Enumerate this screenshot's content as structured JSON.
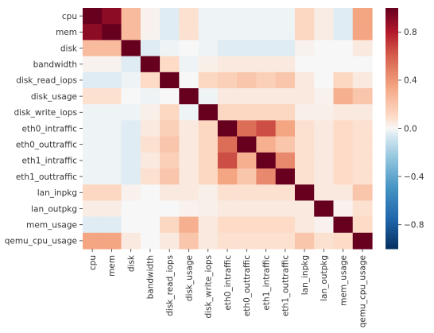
{
  "chart_data": {
    "type": "heatmap",
    "title": "",
    "xlabel": "",
    "ylabel": "",
    "labels": [
      "cpu",
      "mem",
      "disk",
      "bandwidth",
      "disk_read_iops",
      "disk_usage",
      "disk_write_iops",
      "eth0_intraffic",
      "eth0_outtraffic",
      "eth1_intraffic",
      "eth1_outtraffic",
      "lan_inpkg",
      "lan_outpkg",
      "mem_usage",
      "qemu_cpu_usage"
    ],
    "matrix": [
      [
        1.0,
        0.9,
        0.25,
        0.02,
        -0.05,
        0.08,
        -0.02,
        -0.02,
        -0.02,
        -0.02,
        -0.02,
        0.12,
        0.04,
        -0.05,
        0.35
      ],
      [
        0.9,
        1.0,
        0.25,
        0.02,
        -0.05,
        0.08,
        -0.02,
        -0.02,
        -0.02,
        -0.02,
        -0.02,
        0.12,
        0.04,
        -0.05,
        0.35
      ],
      [
        0.25,
        0.25,
        1.0,
        -0.05,
        -0.02,
        0.0,
        -0.02,
        -0.05,
        -0.05,
        -0.05,
        -0.05,
        0.02,
        0.0,
        0.0,
        0.05
      ],
      [
        0.02,
        0.02,
        -0.05,
        1.0,
        0.1,
        -0.02,
        0.03,
        0.05,
        0.05,
        0.05,
        0.05,
        0.0,
        0.0,
        0.0,
        0.0
      ],
      [
        -0.05,
        -0.05,
        -0.02,
        0.1,
        1.0,
        0.0,
        0.12,
        0.15,
        0.2,
        0.15,
        0.2,
        0.05,
        0.0,
        0.12,
        0.05
      ],
      [
        0.08,
        0.08,
        0.0,
        -0.02,
        0.0,
        1.0,
        -0.02,
        0.05,
        0.05,
        0.05,
        0.05,
        0.05,
        0.02,
        0.3,
        0.2
      ],
      [
        -0.02,
        -0.02,
        -0.02,
        0.03,
        0.12,
        -0.02,
        1.0,
        0.12,
        0.12,
        0.12,
        0.12,
        0.03,
        0.03,
        0.05,
        0.05
      ],
      [
        -0.02,
        -0.02,
        -0.05,
        0.05,
        0.15,
        0.05,
        0.12,
        1.0,
        0.55,
        0.65,
        0.35,
        0.08,
        0.05,
        0.1,
        0.08
      ],
      [
        -0.02,
        -0.02,
        -0.05,
        0.08,
        0.2,
        0.05,
        0.12,
        0.55,
        1.0,
        0.3,
        0.2,
        0.08,
        0.05,
        0.1,
        0.08
      ],
      [
        -0.02,
        -0.02,
        -0.05,
        0.05,
        0.15,
        0.05,
        0.12,
        0.65,
        0.3,
        1.0,
        0.45,
        0.08,
        0.05,
        0.1,
        0.08
      ],
      [
        -0.02,
        -0.02,
        -0.05,
        0.08,
        0.2,
        0.05,
        0.12,
        0.35,
        0.2,
        0.45,
        1.0,
        0.08,
        0.05,
        0.1,
        0.08
      ],
      [
        0.12,
        0.12,
        0.02,
        0.0,
        0.05,
        0.05,
        0.03,
        0.08,
        0.08,
        0.08,
        0.08,
        1.0,
        0.05,
        0.05,
        0.2
      ],
      [
        0.04,
        0.04,
        0.0,
        0.0,
        0.0,
        0.02,
        0.03,
        0.05,
        0.05,
        0.05,
        0.05,
        0.05,
        1.0,
        0.02,
        0.08
      ],
      [
        -0.05,
        -0.05,
        0.0,
        0.0,
        0.12,
        0.3,
        0.05,
        0.1,
        0.1,
        0.1,
        0.1,
        0.05,
        0.02,
        1.0,
        0.1
      ],
      [
        0.35,
        0.35,
        0.05,
        0.0,
        0.05,
        0.2,
        0.05,
        0.08,
        0.08,
        0.08,
        0.08,
        0.2,
        0.08,
        0.1,
        1.0
      ]
    ],
    "value_range": [
      -1,
      1
    ],
    "colormap": "RdBu_r",
    "colorbar": {
      "ticks": [
        0.8,
        0.4,
        0.0,
        -0.4,
        -0.8
      ],
      "tick_labels": [
        "0.8",
        "0.4",
        "0.0",
        "−0.4",
        "−0.8"
      ],
      "placement": "right"
    },
    "grid": false
  }
}
